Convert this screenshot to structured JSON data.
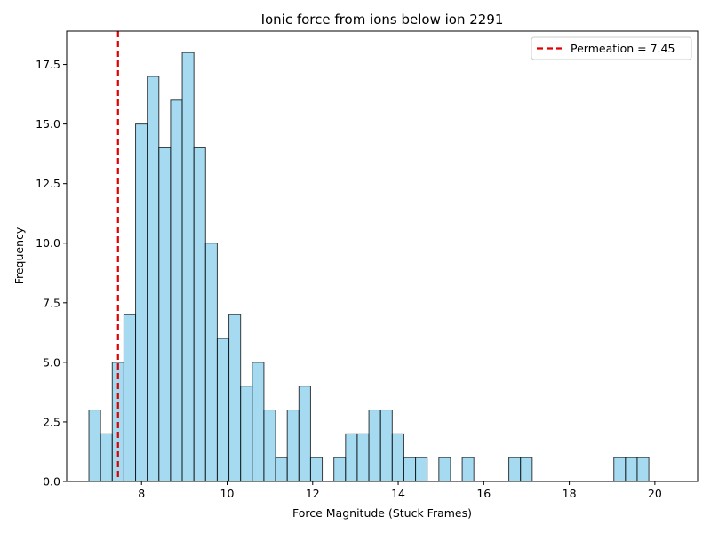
{
  "chart_data": {
    "type": "histogram",
    "title": "Ionic force from ions below ion 2291",
    "xlabel": "Force Magnitude (Stuck Frames)",
    "ylabel": "Frequency",
    "xlim": [
      6.25,
      21.0
    ],
    "ylim": [
      0,
      18.9
    ],
    "x_ticks": [
      8,
      10,
      12,
      14,
      16,
      18,
      20
    ],
    "y_ticks": [
      0.0,
      2.5,
      5.0,
      7.5,
      10.0,
      12.5,
      15.0,
      17.5
    ],
    "y_tick_labels": [
      "0.0",
      "2.5",
      "5.0",
      "7.5",
      "10.0",
      "12.5",
      "15.0",
      "17.5"
    ],
    "bin_start": 6.77,
    "bin_width": 0.2727,
    "counts": [
      3,
      2,
      5,
      7,
      15,
      17,
      14,
      16,
      18,
      14,
      10,
      6,
      7,
      4,
      5,
      3,
      1,
      3,
      4,
      1,
      0,
      1,
      2,
      2,
      3,
      3,
      2,
      1,
      1,
      0,
      1,
      0,
      1,
      0,
      0,
      0,
      1,
      1,
      0,
      0,
      0,
      0,
      0,
      0,
      0,
      1,
      1,
      1
    ],
    "bar_color": "#87ceeb",
    "bar_edge_color": "#000000",
    "reference_line": {
      "x": 7.45,
      "label": "Permeation = 7.45",
      "color": "#e00000",
      "style": "dashed"
    },
    "legend_position": "top-right",
    "grid": false
  }
}
